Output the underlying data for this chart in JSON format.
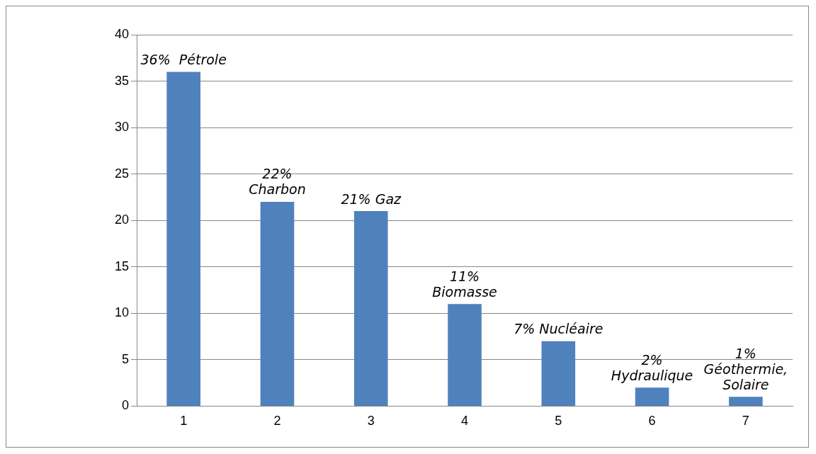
{
  "chart_data": {
    "type": "bar",
    "categories": [
      "1",
      "2",
      "3",
      "4",
      "5",
      "6",
      "7"
    ],
    "values": [
      36,
      22,
      21,
      11,
      7,
      2,
      1
    ],
    "value_labels": [
      "36%  Pétrole",
      "22% Charbon",
      "21% Gaz",
      "11% Biomasse",
      "7% Nucléaire",
      "2% Hydraulique",
      "1% Géothermie, Solaire"
    ],
    "color": "#4f81bd",
    "ylim": [
      0,
      40
    ],
    "yticks": [
      0,
      5,
      10,
      15,
      20,
      25,
      30,
      35,
      40
    ],
    "grid": "y",
    "legend": false
  }
}
